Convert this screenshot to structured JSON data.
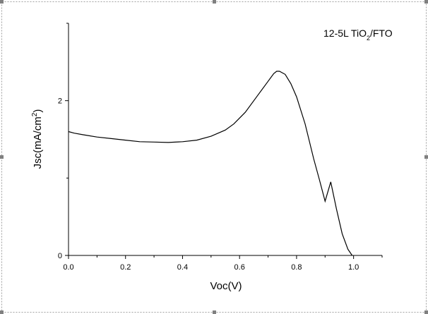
{
  "chart_data": {
    "type": "line",
    "annotation": {
      "prefix": "12-5L TiO",
      "subscript": "2",
      "suffix": "/FTO"
    },
    "xlabel": "Voc(V)",
    "ylabel": {
      "prefix": "Jsc(mA/cm",
      "superscript": "2",
      "suffix": ")"
    },
    "xlim": [
      0.0,
      1.1
    ],
    "ylim": [
      0.0,
      3.0
    ],
    "x_ticks": [
      {
        "value": 0.0,
        "label": "0.0"
      },
      {
        "value": 0.2,
        "label": "0.2"
      },
      {
        "value": 0.4,
        "label": "0.4"
      },
      {
        "value": 0.6,
        "label": "0.6"
      },
      {
        "value": 0.8,
        "label": "0.8"
      },
      {
        "value": 1.0,
        "label": "1.0"
      }
    ],
    "y_ticks": [
      {
        "value": 0,
        "label": "0"
      },
      {
        "value": 2,
        "label": "2"
      }
    ],
    "grid": false,
    "series": [
      {
        "color": "#000000",
        "x": [
          0.0,
          0.02,
          0.05,
          0.1,
          0.15,
          0.2,
          0.25,
          0.3,
          0.35,
          0.4,
          0.45,
          0.5,
          0.55,
          0.58,
          0.62,
          0.66,
          0.7,
          0.72,
          0.73,
          0.74,
          0.76,
          0.78,
          0.8,
          0.83,
          0.86,
          0.88,
          0.9,
          0.92,
          0.94,
          0.96,
          0.98,
          0.995
        ],
        "y": [
          1.6,
          1.58,
          1.56,
          1.53,
          1.51,
          1.49,
          1.47,
          1.465,
          1.46,
          1.47,
          1.49,
          1.54,
          1.62,
          1.7,
          1.85,
          2.05,
          2.25,
          2.35,
          2.38,
          2.38,
          2.34,
          2.22,
          2.05,
          1.7,
          1.25,
          0.98,
          0.7,
          0.95,
          0.6,
          0.28,
          0.08,
          0.0
        ]
      }
    ]
  }
}
